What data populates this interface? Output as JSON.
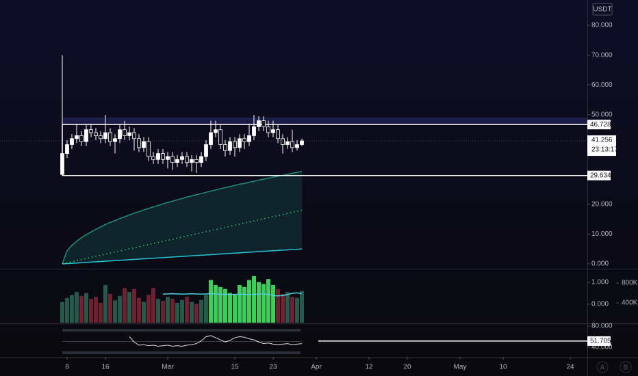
{
  "chart_data": [
    {
      "type": "candlestick",
      "currency": "USDT",
      "categories": [
        "Feb 7",
        "Feb 8",
        "Feb 9",
        "Feb 10",
        "Feb 11",
        "Feb 12",
        "Feb 13",
        "Feb 14",
        "Feb 15",
        "Feb 16",
        "Feb 17",
        "Feb 18",
        "Feb 19",
        "Feb 20",
        "Feb 21",
        "Feb 22",
        "Feb 23",
        "Feb 24",
        "Feb 25",
        "Feb 26",
        "Feb 27",
        "Feb 28",
        "Mar 1",
        "Mar 2",
        "Mar 3",
        "Mar 4",
        "Mar 5",
        "Mar 6",
        "Mar 7",
        "Mar 8",
        "Mar 9",
        "Mar 10",
        "Mar 11",
        "Mar 12",
        "Mar 13",
        "Mar 14",
        "Mar 15",
        "Mar 16",
        "Mar 17",
        "Mar 18",
        "Mar 19",
        "Mar 20",
        "Mar 21",
        "Mar 22",
        "Mar 23",
        "Mar 24",
        "Mar 25",
        "Mar 26",
        "Mar 27",
        "Mar 28",
        "Mar 29"
      ],
      "open": [
        30,
        37,
        40,
        42,
        43,
        41,
        45,
        44,
        43,
        42,
        44,
        41,
        42,
        45,
        43,
        44,
        42,
        39,
        41,
        36,
        35,
        37,
        35,
        36,
        34,
        35,
        36,
        34,
        35,
        34,
        36,
        40,
        44,
        45,
        40,
        38,
        41,
        39,
        42,
        41,
        43,
        46,
        48,
        46,
        44,
        45,
        42,
        40,
        41,
        39,
        40
      ],
      "high": [
        70,
        41.5,
        43.5,
        47,
        44.5,
        46.5,
        47,
        45.5,
        44.5,
        50,
        45.5,
        43.5,
        47,
        48,
        46,
        45.5,
        43.5,
        42.5,
        42.5,
        37.5,
        38.5,
        38.5,
        37.5,
        37.5,
        36.5,
        37.5,
        37.5,
        36.5,
        36.5,
        37.5,
        41.5,
        48,
        48,
        46.5,
        41.5,
        42.5,
        42.5,
        43.5,
        43.5,
        47,
        50,
        49.5,
        49.5,
        48,
        48,
        46.5,
        43.5,
        42.5,
        45,
        41.5,
        42
      ],
      "low": [
        29.634,
        35.5,
        38.5,
        40.5,
        39.5,
        39.5,
        42.5,
        41.5,
        40.5,
        40.5,
        39.5,
        37,
        40.5,
        41.5,
        41.5,
        38,
        37.5,
        37.5,
        34.5,
        33.5,
        33.5,
        33.5,
        32,
        31.5,
        32.5,
        33.5,
        32.5,
        31,
        30.5,
        32.5,
        34.5,
        38.5,
        42.5,
        38.5,
        36,
        36.5,
        36,
        37.5,
        38.5,
        39.5,
        41.5,
        44.5,
        44.5,
        42.5,
        42.5,
        40.5,
        37,
        38.5,
        37.5,
        38,
        39.5
      ],
      "close": [
        37,
        40,
        42,
        43,
        41,
        45,
        44,
        43,
        42,
        44,
        41,
        42,
        45,
        43,
        44,
        42,
        39,
        41,
        36,
        35,
        37,
        35,
        36,
        34,
        35,
        36,
        34,
        35,
        34,
        36,
        40,
        44,
        45,
        40,
        38,
        41,
        39,
        42,
        41,
        43,
        46,
        48,
        46,
        44,
        45,
        42,
        40,
        41,
        39,
        40,
        41.256
      ],
      "series": [
        {
          "color": "#1f8f7a",
          "style": "solid",
          "fill": "rgba(38,166,154,0.16)",
          "values": [
            0,
            4.4,
            6.2,
            7.6,
            8.8,
            9.8,
            10.7,
            11.6,
            12.4,
            13.2,
            13.9,
            14.5,
            15.2,
            15.8,
            16.4,
            17.0,
            17.5,
            18.1,
            18.6,
            19.1,
            19.6,
            20.1,
            20.6,
            21.0,
            21.5,
            21.9,
            22.4,
            22.8,
            23.2,
            23.6,
            24.0,
            24.4,
            24.8,
            25.2,
            25.6,
            25.9,
            26.3,
            26.7,
            27.0,
            27.4,
            27.7,
            28.1,
            28.4,
            28.7,
            29.1,
            29.4,
            29.7,
            30.0,
            30.4,
            30.7,
            31.0
          ]
        },
        {
          "color": "#2ecc71",
          "style": "dotted",
          "values": [
            0,
            0.36,
            0.72,
            1.08,
            1.44,
            1.8,
            2.16,
            2.52,
            2.88,
            3.24,
            3.6,
            3.96,
            4.32,
            4.68,
            5.04,
            5.4,
            5.76,
            6.12,
            6.48,
            6.84,
            7.2,
            7.56,
            7.92,
            8.28,
            8.64,
            9,
            9.36,
            9.72,
            10.08,
            10.44,
            10.8,
            11.16,
            11.52,
            11.88,
            12.24,
            12.6,
            12.96,
            13.32,
            13.68,
            14.04,
            14.4,
            14.76,
            15.12,
            15.48,
            15.84,
            16.2,
            16.56,
            16.92,
            17.28,
            17.64,
            18
          ]
        },
        {
          "color": "#26c6da",
          "style": "solid",
          "values": [
            0,
            0.1,
            0.2,
            0.3,
            0.4,
            0.5,
            0.6,
            0.7,
            0.8,
            0.9,
            1.0,
            1.1,
            1.2,
            1.3,
            1.4,
            1.5,
            1.6,
            1.7,
            1.8,
            1.9,
            2.0,
            2.1,
            2.2,
            2.3,
            2.4,
            2.5,
            2.6,
            2.7,
            2.8,
            2.9,
            3.0,
            3.1,
            3.2,
            3.3,
            3.4,
            3.5,
            3.6,
            3.7,
            3.8,
            3.9,
            4.0,
            4.1,
            4.2,
            4.3,
            4.4,
            4.5,
            4.6,
            4.7,
            4.8,
            4.9,
            5.0
          ]
        }
      ],
      "ylim": [
        -1.375,
        88.48
      ],
      "yticks": [
        {
          "value": 0,
          "label": "0.000"
        },
        {
          "value": 10,
          "label": "10.000"
        },
        {
          "value": 20,
          "label": "20.000"
        },
        {
          "value": 50,
          "label": "50.000"
        },
        {
          "value": 60,
          "label": "60.000"
        },
        {
          "value": 70,
          "label": "70.000"
        },
        {
          "value": 80,
          "label": "80.000"
        }
      ],
      "xlim": [
        "Jan 25",
        "May 26"
      ],
      "xticks": [
        {
          "value": "Feb 8",
          "label": "8"
        },
        {
          "value": "Feb 16",
          "label": "16"
        },
        {
          "value": "Mar 1",
          "label": "Mar"
        },
        {
          "value": "Mar 15",
          "label": "15"
        },
        {
          "value": "Mar 23",
          "label": "23"
        },
        {
          "value": "Apr 1",
          "label": "Apr"
        },
        {
          "value": "Apr 12",
          "label": "12"
        },
        {
          "value": "Apr 20",
          "label": "20"
        },
        {
          "value": "May 1",
          "label": "May"
        },
        {
          "value": "May 10",
          "label": "10"
        },
        {
          "value": "May 24",
          "label": "24"
        }
      ],
      "levels": [
        {
          "value": 46.728,
          "label": "46.728"
        },
        {
          "value": 29.634,
          "label": "29.634"
        }
      ],
      "zone": [
        46.728,
        49.1
      ],
      "last": {
        "value": 41.256,
        "label": "41.256",
        "countdown": "23:13:17"
      },
      "buttons": [
        "A",
        "B"
      ]
    },
    {
      "type": "bar",
      "series": [
        {
          "axis": "y2",
          "values": [
            420000,
            500000,
            560000,
            620000,
            540000,
            600000,
            480000,
            520000,
            400000,
            760000,
            580000,
            450000,
            540000,
            700000,
            620000,
            680000,
            500000,
            420000,
            560000,
            700000,
            480000,
            440000,
            520000,
            480000,
            400000,
            460000,
            520000,
            420000,
            380000,
            460000,
            560000,
            860000,
            760000,
            720000,
            680000,
            600000,
            560000,
            760000,
            720000,
            860000,
            940000,
            820000,
            780000,
            880000,
            760000,
            680000,
            580000,
            620000,
            520000,
            500000,
            640000
          ],
          "colors": [
            "#26594a",
            "#26594a",
            "#26594a",
            "#26594a",
            "#6e2130",
            "#26594a",
            "#6e2130",
            "#6e2130",
            "#6e2130",
            "#26594a",
            "#6e2130",
            "#26594a",
            "#26594a",
            "#6e2130",
            "#26594a",
            "#6e2130",
            "#6e2130",
            "#26594a",
            "#6e2130",
            "#6e2130",
            "#26594a",
            "#6e2130",
            "#26594a",
            "#6e2130",
            "#26594a",
            "#26594a",
            "#6e2130",
            "#26594a",
            "#6e2130",
            "#26594a",
            "#26594a",
            "#3ecf5a",
            "#3ecf5a",
            "#3ecf5a",
            "#3ecf5a",
            "#3ecf5a",
            "#3ecf5a",
            "#3ecf5a",
            "#3ecf5a",
            "#3ecf5a",
            "#3ecf5a",
            "#3ecf5a",
            "#3ecf5a",
            "#3ecf5a",
            "#3ecf5a",
            "#6e2130",
            "#6e2130",
            "#26594a",
            "#6e2130",
            "#26594a",
            "#26594a"
          ]
        },
        {
          "type": "line",
          "color": "#4dd0e1",
          "values": [
            null,
            null,
            null,
            null,
            null,
            null,
            null,
            null,
            null,
            null,
            null,
            null,
            null,
            null,
            null,
            null,
            null,
            null,
            null,
            null,
            null,
            0.46,
            0.47,
            0.48,
            0.47,
            0.46,
            0.47,
            0.48,
            0.47,
            0.46,
            0.47,
            0.48,
            0.47,
            0.46,
            0.45,
            0.44,
            0.45,
            0.46,
            0.45,
            0.44,
            0.45,
            0.46,
            0.47,
            0.45,
            0.4,
            0.38,
            0.4,
            0.44,
            0.5,
            0.52,
            0.48
          ]
        }
      ],
      "ylim": [
        -0.844,
        1.5625
      ],
      "yticks": [
        {
          "value": 1,
          "label": "1.000"
        },
        {
          "value": 0,
          "label": "0.000"
        }
      ],
      "y2lim": [
        0,
        1062000
      ],
      "y2ticks": [
        {
          "value": 800000,
          "label": "800K"
        },
        {
          "value": 400000,
          "label": "400K"
        }
      ]
    },
    {
      "type": "line",
      "series": [
        {
          "color": "#e0e0e0",
          "values": [
            null,
            null,
            null,
            null,
            null,
            null,
            null,
            null,
            null,
            null,
            null,
            null,
            null,
            null,
            60,
            50,
            44,
            45,
            43,
            44,
            42,
            43,
            44,
            42,
            43,
            42,
            44,
            45,
            47,
            52,
            60,
            62,
            58,
            54,
            50,
            53,
            58,
            60,
            59,
            56,
            54,
            50,
            47,
            48,
            46,
            45,
            46,
            47,
            45,
            46,
            47
          ]
        }
      ],
      "ylim": [
        21.94,
        82.58
      ],
      "yticks": [
        {
          "value": 80,
          "label": "80.000"
        },
        {
          "value": 40,
          "label": "40.000"
        }
      ],
      "levels": [
        {
          "value": 51.705,
          "label": "51.705"
        }
      ]
    }
  ]
}
